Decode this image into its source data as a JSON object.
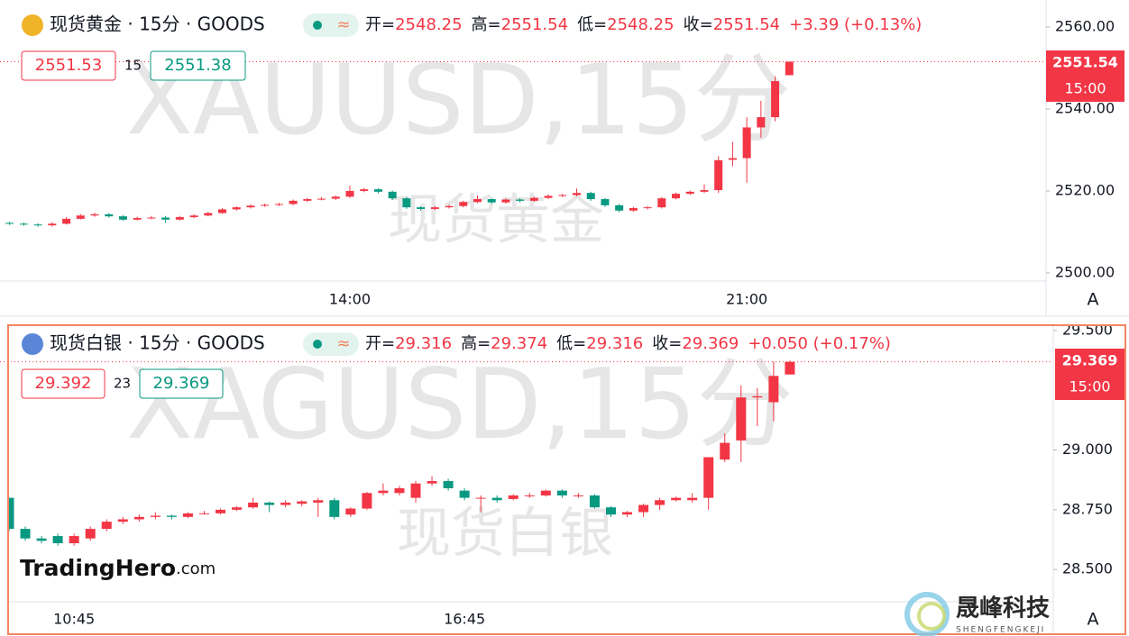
{
  "chart_data": [
    {
      "type": "candlestick",
      "title": "现货黄金 · 15分 · GOODS",
      "badge": "≈",
      "ohlc": [
        {
          "label": "开=",
          "value": "2548.25"
        },
        {
          "label": "高=",
          "value": "2551.54"
        },
        {
          "label": "低=",
          "value": "2548.25"
        },
        {
          "label": "收=",
          "value": "2551.54"
        }
      ],
      "change": "+3.39 (+0.13%)",
      "bid": "2551.53",
      "spread": "15",
      "ask": "2551.38",
      "watermark": "XAUUSD,15分",
      "watermark_sub": "现货黄金",
      "last_price": 2551.54,
      "last_time": "15:00",
      "scale_button": "A",
      "up_color": "#f23645",
      "down_color": "#089981",
      "categories": [
        null,
        null,
        null,
        null,
        null,
        null,
        null,
        null,
        null,
        null,
        null,
        null,
        null,
        null,
        null,
        null,
        null,
        null,
        null,
        null,
        null,
        null,
        null,
        null,
        "14:00",
        null,
        null,
        null,
        null,
        null,
        null,
        null,
        null,
        null,
        null,
        null,
        null,
        null,
        null,
        null,
        null,
        null,
        null,
        null,
        null,
        null,
        null,
        null,
        null,
        null,
        null,
        null,
        "21:00",
        null,
        null,
        null
      ],
      "candles": [
        [
          2512.2,
          2512.5,
          2511.7,
          2512.0
        ],
        [
          2512.0,
          2512.3,
          2511.5,
          2511.8
        ],
        [
          2511.8,
          2512.1,
          2511.3,
          2511.6
        ],
        [
          2511.6,
          2512.4,
          2511.3,
          2512.0
        ],
        [
          2512.0,
          2513.6,
          2511.8,
          2513.2
        ],
        [
          2513.2,
          2514.4,
          2513.0,
          2514.0
        ],
        [
          2514.0,
          2514.7,
          2513.7,
          2514.3
        ],
        [
          2514.3,
          2514.6,
          2513.5,
          2513.8
        ],
        [
          2513.8,
          2514.1,
          2512.7,
          2513.0
        ],
        [
          2513.0,
          2513.7,
          2512.8,
          2513.4
        ],
        [
          2513.4,
          2513.9,
          2513.1,
          2513.5
        ],
        [
          2513.5,
          2513.9,
          2512.2,
          2513.0
        ],
        [
          2513.0,
          2513.9,
          2512.8,
          2513.6
        ],
        [
          2513.6,
          2514.3,
          2513.3,
          2514.0
        ],
        [
          2514.0,
          2514.9,
          2513.8,
          2514.6
        ],
        [
          2514.6,
          2515.8,
          2514.4,
          2515.5
        ],
        [
          2515.5,
          2516.3,
          2515.2,
          2516.0
        ],
        [
          2516.0,
          2516.7,
          2515.7,
          2516.4
        ],
        [
          2516.4,
          2516.9,
          2516.1,
          2516.6
        ],
        [
          2516.6,
          2517.1,
          2516.3,
          2516.8
        ],
        [
          2516.8,
          2517.9,
          2516.5,
          2517.6
        ],
        [
          2517.6,
          2518.3,
          2517.3,
          2518.0
        ],
        [
          2518.0,
          2518.5,
          2517.7,
          2518.1
        ],
        [
          2518.1,
          2518.9,
          2517.8,
          2518.6
        ],
        [
          2518.6,
          2521.3,
          2518.3,
          2520.0
        ],
        [
          2520.0,
          2520.7,
          2519.7,
          2520.4
        ],
        [
          2520.4,
          2520.7,
          2519.4,
          2519.8
        ],
        [
          2519.8,
          2520.1,
          2517.8,
          2518.2
        ],
        [
          2518.2,
          2518.5,
          2515.6,
          2516.0
        ],
        [
          2516.0,
          2516.3,
          2515.2,
          2515.6
        ],
        [
          2515.6,
          2516.3,
          2515.3,
          2516.0
        ],
        [
          2516.0,
          2516.6,
          2515.7,
          2516.3
        ],
        [
          2516.3,
          2517.6,
          2516.0,
          2517.3
        ],
        [
          2517.3,
          2518.9,
          2517.0,
          2518.0
        ],
        [
          2518.0,
          2518.3,
          2516.8,
          2517.2
        ],
        [
          2517.2,
          2518.2,
          2516.9,
          2517.9
        ],
        [
          2517.9,
          2518.2,
          2517.2,
          2517.6
        ],
        [
          2517.6,
          2518.6,
          2517.3,
          2518.3
        ],
        [
          2518.3,
          2519.1,
          2518.0,
          2518.8
        ],
        [
          2518.8,
          2519.3,
          2518.5,
          2519.0
        ],
        [
          2519.0,
          2520.6,
          2518.7,
          2519.5
        ],
        [
          2519.5,
          2519.8,
          2517.6,
          2518.0
        ],
        [
          2518.0,
          2518.3,
          2516.1,
          2516.5
        ],
        [
          2516.5,
          2516.8,
          2514.8,
          2515.2
        ],
        [
          2515.2,
          2516.1,
          2514.9,
          2515.8
        ],
        [
          2515.8,
          2516.3,
          2515.5,
          2516.0
        ],
        [
          2516.0,
          2518.5,
          2515.7,
          2518.2
        ],
        [
          2518.2,
          2519.6,
          2517.9,
          2519.3
        ],
        [
          2519.3,
          2520.1,
          2519.0,
          2519.8
        ],
        [
          2519.8,
          2521.6,
          2519.5,
          2520.2
        ],
        [
          2520.2,
          2528.5,
          2519.5,
          2527.5
        ],
        [
          2527.6,
          2532.0,
          2526.0,
          2528.0
        ],
        [
          2528.0,
          2538.0,
          2522.0,
          2535.5
        ],
        [
          2535.5,
          2542.0,
          2533.0,
          2538.0
        ],
        [
          2538.0,
          2548.0,
          2537.0,
          2546.8
        ],
        [
          2548.25,
          2551.54,
          2548.25,
          2551.54
        ]
      ],
      "ylim": [
        2498,
        2566.6
      ],
      "yticks": [
        {
          "value": 2500,
          "label": "2500.00"
        },
        {
          "value": 2520,
          "label": "2520.00"
        },
        {
          "value": 2540,
          "label": "2540.00"
        },
        {
          "value": 2560,
          "label": "2560.00"
        }
      ]
    },
    {
      "type": "candlestick",
      "title": "现货白银 · 15分 · GOODS",
      "badge": "≈",
      "ohlc": [
        {
          "label": "开=",
          "value": "29.316"
        },
        {
          "label": "高=",
          "value": "29.374"
        },
        {
          "label": "低=",
          "value": "29.316"
        },
        {
          "label": "收=",
          "value": "29.369"
        }
      ],
      "change": "+0.050 (+0.17%)",
      "bid": "29.392",
      "spread": "23",
      "ask": "29.369",
      "watermark": "XAGUSD,15分",
      "watermark_sub": "现货白银",
      "last_price": 29.369,
      "last_time": "15:00",
      "scale_button": "A",
      "up_color": "#f23645",
      "down_color": "#089981",
      "categories": [
        null,
        null,
        null,
        null,
        "10:45",
        null,
        null,
        null,
        null,
        null,
        null,
        null,
        null,
        null,
        null,
        null,
        null,
        null,
        null,
        null,
        null,
        null,
        null,
        null,
        null,
        null,
        null,
        null,
        "16:45",
        null,
        null,
        null,
        null,
        null,
        null,
        null,
        null,
        null,
        null,
        null,
        null,
        null,
        null,
        null,
        null,
        null,
        null,
        null,
        null
      ],
      "candles": [
        [
          28.8,
          28.8,
          28.66,
          28.67
        ],
        [
          28.67,
          28.68,
          28.62,
          28.63
        ],
        [
          28.63,
          28.64,
          28.61,
          28.62
        ],
        [
          28.64,
          28.65,
          28.6,
          28.61
        ],
        [
          28.61,
          28.65,
          28.6,
          28.64
        ],
        [
          28.63,
          28.68,
          28.62,
          28.67
        ],
        [
          28.67,
          28.71,
          28.66,
          28.7
        ],
        [
          28.7,
          28.72,
          28.69,
          28.71
        ],
        [
          28.71,
          28.73,
          28.7,
          28.72
        ],
        [
          28.72,
          28.74,
          28.71,
          28.725
        ],
        [
          28.725,
          28.73,
          28.71,
          28.72
        ],
        [
          28.72,
          28.74,
          28.715,
          28.735
        ],
        [
          28.735,
          28.745,
          28.73,
          28.735
        ],
        [
          28.735,
          28.755,
          28.73,
          28.75
        ],
        [
          28.75,
          28.765,
          28.745,
          28.76
        ],
        [
          28.76,
          28.8,
          28.755,
          28.78
        ],
        [
          28.78,
          28.785,
          28.74,
          28.77
        ],
        [
          28.77,
          28.79,
          28.76,
          28.78
        ],
        [
          28.775,
          28.79,
          28.765,
          28.785
        ],
        [
          28.78,
          28.8,
          28.72,
          28.79
        ],
        [
          28.79,
          28.8,
          28.71,
          28.72
        ],
        [
          28.73,
          28.76,
          28.72,
          28.755
        ],
        [
          28.755,
          28.825,
          28.75,
          28.82
        ],
        [
          28.82,
          28.86,
          28.81,
          28.83
        ],
        [
          28.82,
          28.85,
          28.81,
          28.84
        ],
        [
          28.8,
          28.87,
          28.78,
          28.86
        ],
        [
          28.86,
          28.89,
          28.85,
          28.87
        ],
        [
          28.87,
          28.88,
          28.83,
          28.84
        ],
        [
          28.83,
          28.84,
          28.79,
          28.8
        ],
        [
          28.8,
          28.81,
          28.74,
          28.8
        ],
        [
          28.8,
          28.81,
          28.78,
          28.79
        ],
        [
          28.795,
          28.815,
          28.79,
          28.81
        ],
        [
          28.81,
          28.82,
          28.8,
          28.81
        ],
        [
          28.81,
          28.835,
          28.805,
          28.83
        ],
        [
          28.83,
          28.835,
          28.8,
          28.81
        ],
        [
          28.81,
          28.82,
          28.8,
          28.81
        ],
        [
          28.81,
          28.815,
          28.755,
          28.76
        ],
        [
          28.76,
          28.765,
          28.72,
          28.73
        ],
        [
          28.73,
          28.745,
          28.72,
          28.74
        ],
        [
          28.74,
          28.775,
          28.72,
          28.77
        ],
        [
          28.77,
          28.8,
          28.75,
          28.79
        ],
        [
          28.79,
          28.805,
          28.785,
          28.8
        ],
        [
          28.79,
          28.82,
          28.78,
          28.8
        ],
        [
          28.8,
          28.97,
          28.75,
          28.97
        ],
        [
          28.96,
          29.07,
          28.95,
          29.03
        ],
        [
          29.04,
          29.27,
          28.95,
          29.22
        ],
        [
          29.22,
          29.26,
          29.1,
          29.225
        ],
        [
          29.2,
          29.37,
          29.12,
          29.31
        ],
        [
          29.316,
          29.374,
          29.316,
          29.369
        ]
      ],
      "ylim": [
        28.365,
        29.526
      ],
      "yticks": [
        {
          "value": 28.5,
          "label": "28.500"
        },
        {
          "value": 28.75,
          "label": "28.750"
        },
        {
          "value": 29,
          "label": "29.000"
        },
        {
          "value": 29.5,
          "label": "29.500"
        }
      ]
    }
  ],
  "logos": {
    "trading_hero": "TradingHero",
    "trading_hero_suffix": ".com",
    "company": "晟峰科技",
    "company_en": "SHENGFENGKEJI"
  }
}
